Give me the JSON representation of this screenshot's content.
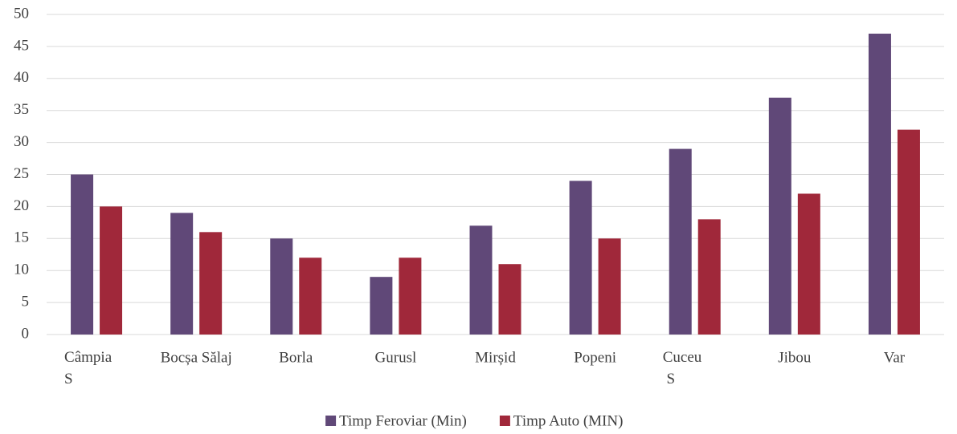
{
  "chart_data": {
    "type": "bar",
    "categories": [
      "Câmpia\nS",
      "Bocșa Sălaj",
      "Borla",
      "Gurusl",
      "Mirșid",
      "Popeni",
      "Cuceu\n S",
      "Jibou",
      "Var"
    ],
    "series": [
      {
        "name": "Timp Feroviar (Min)",
        "color": "#604878",
        "values": [
          25,
          19,
          15,
          9,
          17,
          24,
          29,
          37,
          47
        ]
      },
      {
        "name": "Timp Auto (MIN)",
        "color": "#a0283a",
        "values": [
          20,
          16,
          12,
          12,
          11,
          15,
          18,
          22,
          32
        ]
      }
    ],
    "ylim": [
      0,
      50
    ],
    "yticks": [
      0,
      5,
      10,
      15,
      20,
      25,
      30,
      35,
      40,
      45,
      50
    ],
    "grid": true,
    "legend": "bottom"
  }
}
